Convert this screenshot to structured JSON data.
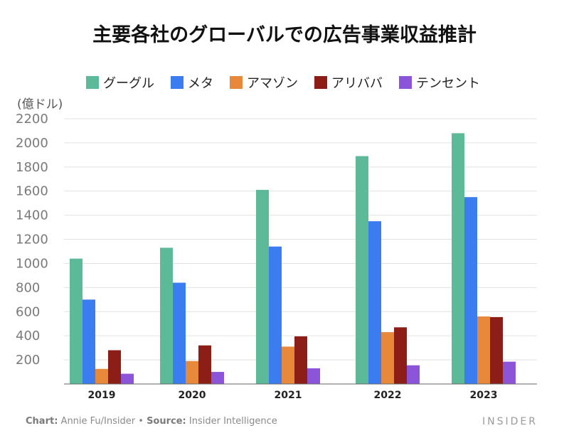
{
  "chart_data": {
    "type": "bar",
    "title": "主要各社のグローバルでの広告事業収益推計",
    "ylabel": "(億ドル)",
    "xlabel": "",
    "categories": [
      "2019",
      "2020",
      "2021",
      "2022",
      "2023"
    ],
    "series": [
      {
        "name": "グーグル",
        "color": "#5dba98",
        "values": [
          1040,
          1130,
          1610,
          1890,
          2080
        ]
      },
      {
        "name": "メタ",
        "color": "#3b7df0",
        "values": [
          700,
          840,
          1140,
          1350,
          1550
        ]
      },
      {
        "name": "アマゾン",
        "color": "#e8883a",
        "values": [
          125,
          190,
          310,
          430,
          560
        ]
      },
      {
        "name": "アリババ",
        "color": "#8c1e17",
        "values": [
          280,
          320,
          395,
          470,
          555
        ]
      },
      {
        "name": "テンセント",
        "color": "#8c55d9",
        "values": [
          85,
          100,
          130,
          155,
          185
        ]
      }
    ],
    "ylim": [
      0,
      2200
    ],
    "yticks": [
      200,
      400,
      600,
      800,
      1000,
      1200,
      1400,
      1600,
      1800,
      2000,
      2200
    ],
    "grid": true,
    "legend_position": "top"
  },
  "footer": {
    "chart_label": "Chart:",
    "chart_author": "Annie Fu/Insider",
    "separator": "•",
    "source_label": "Source:",
    "source_name": "Insider Intelligence"
  },
  "brand": "INSIDER"
}
